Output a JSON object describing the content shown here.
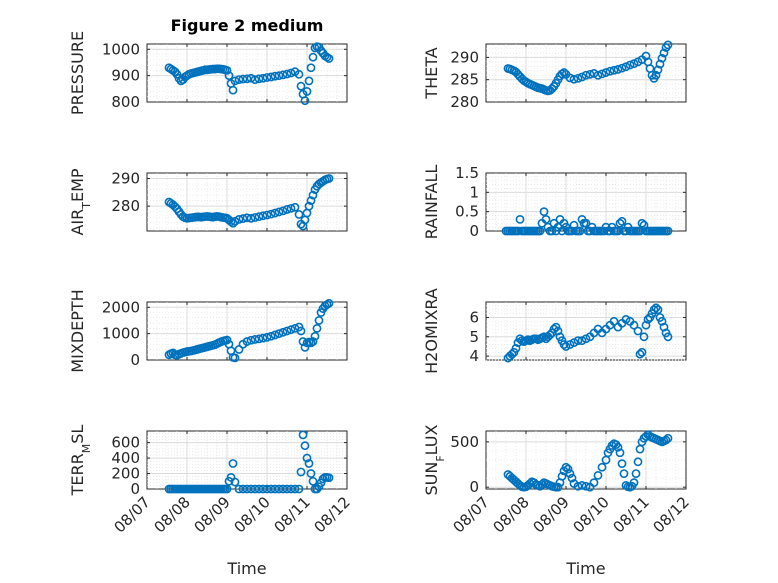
{
  "figure_title": "Figure 2 medium",
  "colors": {
    "marker": "#0072bd",
    "axes": "#262626",
    "grid": "#dcdcdc"
  },
  "chart_data": [
    {
      "type": "scatter",
      "title": "Figure 2 medium",
      "xlabel": "",
      "ylabel": "PRESSURE",
      "xlim": [
        0,
        5
      ],
      "ylim": [
        800,
        1020
      ],
      "yticks": [
        800,
        900,
        1000
      ],
      "xticks": [
        0,
        1,
        2,
        3,
        4,
        5
      ],
      "xticklabels": [
        "08/07",
        "08/08",
        "08/09",
        "08/10",
        "08/11",
        "08/12"
      ],
      "show_x_ticklabels": false,
      "grid": true,
      "x": [
        0.55,
        0.6,
        0.65,
        0.7,
        0.75,
        0.8,
        0.85,
        0.9,
        0.95,
        1.0,
        1.05,
        1.1,
        1.15,
        1.2,
        1.25,
        1.3,
        1.35,
        1.4,
        1.45,
        1.5,
        1.55,
        1.6,
        1.65,
        1.7,
        1.75,
        1.8,
        1.85,
        1.9,
        1.95,
        2.0,
        2.05,
        2.1,
        2.15,
        2.2,
        2.3,
        2.4,
        2.5,
        2.6,
        2.7,
        2.8,
        2.9,
        3.0,
        3.1,
        3.2,
        3.3,
        3.4,
        3.5,
        3.6,
        3.7,
        3.8,
        3.85,
        3.9,
        3.95,
        4.0,
        4.05,
        4.1,
        4.15,
        4.2,
        4.25,
        4.3,
        4.35,
        4.4,
        4.45,
        4.5,
        4.55
      ],
      "y": [
        930,
        925,
        920,
        915,
        905,
        890,
        880,
        885,
        895,
        900,
        905,
        908,
        910,
        912,
        914,
        916,
        918,
        920,
        922,
        922,
        923,
        924,
        925,
        925,
        926,
        926,
        925,
        924,
        922,
        920,
        900,
        870,
        845,
        880,
        885,
        887,
        888,
        890,
        885,
        888,
        890,
        893,
        895,
        898,
        900,
        903,
        906,
        910,
        915,
        905,
        860,
        830,
        805,
        840,
        880,
        930,
        970,
        1005,
        1010,
        1008,
        995,
        985,
        975,
        970,
        965
      ]
    },
    {
      "type": "scatter",
      "title": "",
      "xlabel": "",
      "ylabel": "THETA",
      "xlim": [
        0,
        5
      ],
      "ylim": [
        280,
        293
      ],
      "yticks": [
        280,
        285,
        290
      ],
      "xticks": [
        0,
        1,
        2,
        3,
        4,
        5
      ],
      "xticklabels": [
        "08/07",
        "08/08",
        "08/09",
        "08/10",
        "08/11",
        "08/12"
      ],
      "show_x_ticklabels": false,
      "grid": true,
      "x": [
        0.55,
        0.6,
        0.65,
        0.7,
        0.75,
        0.8,
        0.85,
        0.9,
        0.95,
        1.0,
        1.05,
        1.1,
        1.15,
        1.2,
        1.25,
        1.3,
        1.35,
        1.4,
        1.45,
        1.5,
        1.55,
        1.6,
        1.65,
        1.7,
        1.75,
        1.8,
        1.85,
        1.9,
        1.95,
        2.0,
        2.1,
        2.2,
        2.3,
        2.4,
        2.5,
        2.6,
        2.7,
        2.8,
        2.9,
        3.0,
        3.1,
        3.2,
        3.3,
        3.4,
        3.5,
        3.6,
        3.7,
        3.8,
        3.9,
        4.0,
        4.05,
        4.1,
        4.15,
        4.2,
        4.25,
        4.3,
        4.35,
        4.4,
        4.45,
        4.5,
        4.55
      ],
      "y": [
        287.5,
        287.4,
        287.2,
        287,
        286.7,
        286.2,
        285.7,
        285.2,
        284.8,
        284.5,
        284.2,
        284,
        283.8,
        283.6,
        283.4,
        283.2,
        283.1,
        283,
        282.8,
        282.6,
        282.5,
        282.6,
        283,
        283.5,
        284.2,
        285,
        285.8,
        286.3,
        286.6,
        286.2,
        285.4,
        285.1,
        285.3,
        285.6,
        286,
        286.2,
        286.4,
        286,
        286.3,
        286.6,
        286.9,
        287.1,
        287.3,
        287.6,
        287.9,
        288.3,
        288.6,
        289,
        289.5,
        290.3,
        289,
        287.5,
        286,
        285.3,
        286,
        287.2,
        288.5,
        289.8,
        291,
        292.2,
        292.8
      ]
    },
    {
      "type": "scatter",
      "title": "",
      "xlabel": "",
      "ylabel": "AIR_TEMP",
      "xlim": [
        0,
        5
      ],
      "ylim": [
        271,
        292
      ],
      "yticks": [
        280,
        290
      ],
      "xticks": [
        0,
        1,
        2,
        3,
        4,
        5
      ],
      "xticklabels": [
        "08/07",
        "08/08",
        "08/09",
        "08/10",
        "08/11",
        "08/12"
      ],
      "show_x_ticklabels": false,
      "grid": true,
      "x": [
        0.55,
        0.6,
        0.65,
        0.7,
        0.75,
        0.8,
        0.85,
        0.9,
        0.95,
        1.0,
        1.05,
        1.1,
        1.15,
        1.2,
        1.25,
        1.3,
        1.35,
        1.4,
        1.45,
        1.5,
        1.55,
        1.6,
        1.65,
        1.7,
        1.75,
        1.8,
        1.85,
        1.9,
        1.95,
        2.0,
        2.05,
        2.1,
        2.15,
        2.2,
        2.3,
        2.4,
        2.5,
        2.6,
        2.7,
        2.8,
        2.9,
        3.0,
        3.1,
        3.2,
        3.3,
        3.4,
        3.5,
        3.6,
        3.7,
        3.8,
        3.85,
        3.9,
        3.95,
        4.0,
        4.05,
        4.1,
        4.15,
        4.2,
        4.25,
        4.3,
        4.35,
        4.4,
        4.45,
        4.5,
        4.55
      ],
      "y": [
        281.5,
        281,
        280.5,
        279.8,
        279,
        278,
        277,
        276.2,
        275.8,
        275.6,
        275.7,
        275.8,
        275.9,
        276,
        276.1,
        276.1,
        276,
        276.1,
        276.2,
        276.3,
        276.2,
        276.1,
        276,
        276.2,
        276.3,
        276.2,
        276,
        275.9,
        275.8,
        275.6,
        275,
        274.4,
        273.8,
        274.5,
        275.2,
        275.5,
        275.8,
        275.6,
        275.9,
        276.2,
        276.5,
        276.8,
        277.1,
        277.5,
        277.9,
        278.3,
        278.8,
        279.2,
        279.6,
        277,
        273.5,
        272.8,
        275,
        277.5,
        280,
        282,
        284,
        286,
        287.2,
        288,
        288.5,
        289,
        289.5,
        289.8,
        290
      ]
    },
    {
      "type": "scatter",
      "title": "",
      "xlabel": "",
      "ylabel": "RAINFALL",
      "xlim": [
        0,
        5
      ],
      "ylim": [
        0,
        1.5
      ],
      "yticks": [
        0,
        0.5,
        1,
        1.5
      ],
      "xticks": [
        0,
        1,
        2,
        3,
        4,
        5
      ],
      "xticklabels": [
        "08/07",
        "08/08",
        "08/09",
        "08/10",
        "08/11",
        "08/12"
      ],
      "show_x_ticklabels": false,
      "grid": true,
      "x": [
        0.5,
        0.55,
        0.6,
        0.65,
        0.7,
        0.75,
        0.8,
        0.85,
        0.9,
        0.95,
        1.0,
        1.05,
        1.1,
        1.15,
        1.2,
        1.25,
        1.3,
        1.35,
        1.4,
        1.45,
        1.5,
        1.55,
        1.6,
        1.65,
        1.7,
        1.75,
        1.8,
        1.85,
        1.9,
        1.95,
        2.0,
        2.05,
        2.1,
        2.15,
        2.2,
        2.25,
        2.3,
        2.35,
        2.4,
        2.45,
        2.5,
        2.55,
        2.6,
        2.65,
        2.7,
        2.75,
        2.8,
        2.85,
        2.9,
        2.95,
        3.0,
        3.05,
        3.1,
        3.15,
        3.2,
        3.25,
        3.3,
        3.35,
        3.4,
        3.45,
        3.5,
        3.55,
        3.6,
        3.65,
        3.7,
        3.75,
        3.8,
        3.85,
        3.9,
        3.95,
        4.0,
        4.05,
        4.1,
        4.15,
        4.2,
        4.25,
        4.3,
        4.35,
        4.4,
        4.45,
        4.5,
        4.55
      ],
      "y": [
        0,
        0,
        0,
        0,
        0,
        0,
        0,
        0.3,
        0,
        0,
        0,
        0,
        0,
        0,
        0,
        0,
        0,
        0,
        0.2,
        0.5,
        0.3,
        0.1,
        0,
        0,
        0.2,
        0,
        0.1,
        0.3,
        0,
        0.2,
        0.1,
        0,
        0,
        0,
        0.15,
        0,
        0,
        0,
        0.3,
        0.2,
        0.2,
        0,
        0,
        0.1,
        0,
        0,
        0,
        0,
        0,
        0,
        0.1,
        0,
        0,
        0.1,
        0,
        0,
        0,
        0.2,
        0.25,
        0,
        0,
        0.1,
        0,
        0,
        0,
        0,
        0,
        0,
        0.2,
        0.15,
        0,
        0,
        0,
        0,
        0,
        0,
        0,
        0,
        0,
        0,
        0,
        0
      ]
    },
    {
      "type": "scatter",
      "title": "",
      "xlabel": "",
      "ylabel": "MIXDEPTH",
      "xlim": [
        0,
        5
      ],
      "ylim": [
        0,
        2200
      ],
      "yticks": [
        0,
        1000,
        2000
      ],
      "xticks": [
        0,
        1,
        2,
        3,
        4,
        5
      ],
      "xticklabels": [
        "08/07",
        "08/08",
        "08/09",
        "08/10",
        "08/11",
        "08/12"
      ],
      "show_x_ticklabels": false,
      "grid": true,
      "x": [
        0.55,
        0.6,
        0.65,
        0.7,
        0.75,
        0.8,
        0.85,
        0.9,
        0.95,
        1.0,
        1.05,
        1.1,
        1.15,
        1.2,
        1.25,
        1.3,
        1.35,
        1.4,
        1.45,
        1.5,
        1.55,
        1.6,
        1.65,
        1.7,
        1.75,
        1.8,
        1.85,
        1.9,
        1.95,
        2.0,
        2.05,
        2.1,
        2.15,
        2.2,
        2.3,
        2.4,
        2.5,
        2.6,
        2.7,
        2.8,
        2.9,
        3.0,
        3.1,
        3.2,
        3.3,
        3.4,
        3.5,
        3.6,
        3.7,
        3.8,
        3.85,
        3.9,
        3.95,
        4.0,
        4.05,
        4.1,
        4.15,
        4.2,
        4.25,
        4.3,
        4.35,
        4.4,
        4.45,
        4.5,
        4.55
      ],
      "y": [
        200,
        240,
        270,
        200,
        180,
        220,
        250,
        280,
        300,
        320,
        330,
        340,
        360,
        380,
        400,
        420,
        440,
        460,
        480,
        500,
        520,
        540,
        560,
        580,
        620,
        660,
        690,
        720,
        740,
        760,
        600,
        350,
        100,
        80,
        400,
        600,
        700,
        750,
        780,
        800,
        830,
        860,
        900,
        950,
        1000,
        1050,
        1100,
        1150,
        1200,
        1250,
        1100,
        700,
        480,
        650,
        680,
        650,
        700,
        900,
        1200,
        1500,
        1800,
        1950,
        2050,
        2100,
        2150
      ]
    },
    {
      "type": "scatter",
      "title": "",
      "xlabel": "",
      "ylabel": "H2OMIXRA",
      "xlim": [
        0,
        5
      ],
      "ylim": [
        3.8,
        6.8
      ],
      "yticks": [
        4,
        5,
        6
      ],
      "xticks": [
        0,
        1,
        2,
        3,
        4,
        5
      ],
      "xticklabels": [
        "08/07",
        "08/08",
        "08/09",
        "08/10",
        "08/11",
        "08/12"
      ],
      "show_x_ticklabels": false,
      "grid": true,
      "x": [
        0.55,
        0.6,
        0.65,
        0.7,
        0.75,
        0.8,
        0.85,
        0.9,
        0.95,
        1.0,
        1.05,
        1.1,
        1.15,
        1.2,
        1.25,
        1.3,
        1.35,
        1.4,
        1.45,
        1.5,
        1.55,
        1.6,
        1.65,
        1.7,
        1.75,
        1.8,
        1.85,
        1.9,
        1.95,
        2.0,
        2.1,
        2.2,
        2.3,
        2.4,
        2.5,
        2.6,
        2.7,
        2.8,
        2.9,
        3.0,
        3.1,
        3.2,
        3.3,
        3.4,
        3.5,
        3.6,
        3.7,
        3.8,
        3.85,
        3.9,
        3.95,
        4.0,
        4.05,
        4.1,
        4.15,
        4.2,
        4.25,
        4.3,
        4.35,
        4.4,
        4.45,
        4.5,
        4.55
      ],
      "y": [
        3.9,
        4.0,
        4.1,
        4.2,
        4.4,
        4.7,
        4.9,
        4.8,
        4.75,
        4.8,
        4.85,
        4.8,
        4.85,
        4.9,
        4.9,
        4.85,
        4.9,
        4.95,
        5.0,
        4.9,
        5.0,
        5.1,
        5.2,
        5.4,
        5.5,
        5.3,
        5.0,
        4.8,
        4.6,
        4.5,
        4.6,
        4.7,
        4.8,
        4.8,
        4.9,
        5.0,
        5.2,
        5.4,
        5.2,
        5.4,
        5.6,
        5.8,
        5.5,
        5.7,
        5.9,
        5.8,
        5.6,
        5.3,
        4.1,
        4.2,
        5.0,
        5.6,
        5.9,
        6.0,
        6.2,
        6.4,
        6.5,
        6.4,
        6.0,
        5.8,
        5.5,
        5.2,
        5.0
      ]
    },
    {
      "type": "scatter",
      "title": "",
      "xlabel": "Time",
      "ylabel": "TERR_MSL",
      "xlim": [
        0,
        5
      ],
      "ylim": [
        0,
        750
      ],
      "yticks": [
        0,
        200,
        400,
        600
      ],
      "xticks": [
        0,
        1,
        2,
        3,
        4,
        5
      ],
      "xticklabels": [
        "08/07",
        "08/08",
        "08/09",
        "08/10",
        "08/11",
        "08/12"
      ],
      "show_x_ticklabels": true,
      "grid": true,
      "x": [
        0.55,
        0.6,
        0.65,
        0.7,
        0.75,
        0.8,
        0.85,
        0.9,
        0.95,
        1.0,
        1.05,
        1.1,
        1.15,
        1.2,
        1.25,
        1.3,
        1.35,
        1.4,
        1.45,
        1.5,
        1.55,
        1.6,
        1.65,
        1.7,
        1.75,
        1.8,
        1.85,
        1.9,
        1.95,
        2.0,
        2.05,
        2.1,
        2.15,
        2.2,
        2.3,
        2.4,
        2.5,
        2.6,
        2.7,
        2.8,
        2.9,
        3.0,
        3.1,
        3.2,
        3.3,
        3.4,
        3.5,
        3.6,
        3.7,
        3.8,
        3.85,
        3.9,
        3.95,
        4.0,
        4.05,
        4.1,
        4.15,
        4.2,
        4.25,
        4.3,
        4.35,
        4.4,
        4.45,
        4.5,
        4.55
      ],
      "y": [
        0,
        0,
        0,
        0,
        0,
        0,
        0,
        0,
        0,
        0,
        0,
        0,
        0,
        0,
        0,
        0,
        0,
        0,
        0,
        0,
        0,
        0,
        0,
        0,
        0,
        0,
        0,
        0,
        0,
        0,
        100,
        150,
        330,
        90,
        0,
        0,
        0,
        0,
        0,
        0,
        0,
        0,
        0,
        0,
        0,
        0,
        0,
        0,
        0,
        0,
        220,
        700,
        560,
        400,
        330,
        200,
        100,
        0,
        0,
        30,
        80,
        130,
        150,
        150,
        145
      ]
    },
    {
      "type": "scatter",
      "title": "",
      "xlabel": "Time",
      "ylabel": "SUN_FLUX",
      "xlim": [
        0,
        5
      ],
      "ylim": [
        -20,
        620
      ],
      "yticks": [
        0,
        500
      ],
      "xticks": [
        0,
        1,
        2,
        3,
        4,
        5
      ],
      "xticklabels": [
        "08/07",
        "08/08",
        "08/09",
        "08/10",
        "08/11",
        "08/12"
      ],
      "show_x_ticklabels": true,
      "grid": true,
      "x": [
        0.55,
        0.6,
        0.65,
        0.7,
        0.75,
        0.8,
        0.85,
        0.9,
        0.95,
        1.0,
        1.05,
        1.1,
        1.15,
        1.2,
        1.25,
        1.3,
        1.35,
        1.4,
        1.45,
        1.5,
        1.55,
        1.6,
        1.65,
        1.7,
        1.75,
        1.8,
        1.85,
        1.9,
        1.95,
        2.0,
        2.05,
        2.1,
        2.15,
        2.2,
        2.3,
        2.4,
        2.5,
        2.6,
        2.7,
        2.8,
        2.9,
        3.0,
        3.05,
        3.1,
        3.15,
        3.2,
        3.25,
        3.3,
        3.35,
        3.4,
        3.45,
        3.5,
        3.55,
        3.6,
        3.65,
        3.7,
        3.75,
        3.8,
        3.85,
        3.9,
        3.95,
        4.0,
        4.05,
        4.1,
        4.15,
        4.2,
        4.25,
        4.3,
        4.35,
        4.4,
        4.45,
        4.5,
        4.55
      ],
      "y": [
        140,
        120,
        100,
        80,
        60,
        40,
        20,
        5,
        0,
        5,
        20,
        40,
        60,
        50,
        30,
        20,
        10,
        30,
        50,
        40,
        30,
        20,
        10,
        5,
        0,
        0,
        50,
        120,
        180,
        220,
        200,
        150,
        100,
        40,
        10,
        20,
        10,
        0,
        50,
        130,
        220,
        300,
        380,
        420,
        460,
        480,
        470,
        440,
        380,
        260,
        150,
        20,
        5,
        0,
        10,
        50,
        150,
        280,
        420,
        500,
        540,
        560,
        580,
        560,
        550,
        540,
        530,
        520,
        510,
        500,
        510,
        520,
        540
      ]
    }
  ],
  "layout_grid": {
    "rows": 4,
    "cols": 2
  }
}
